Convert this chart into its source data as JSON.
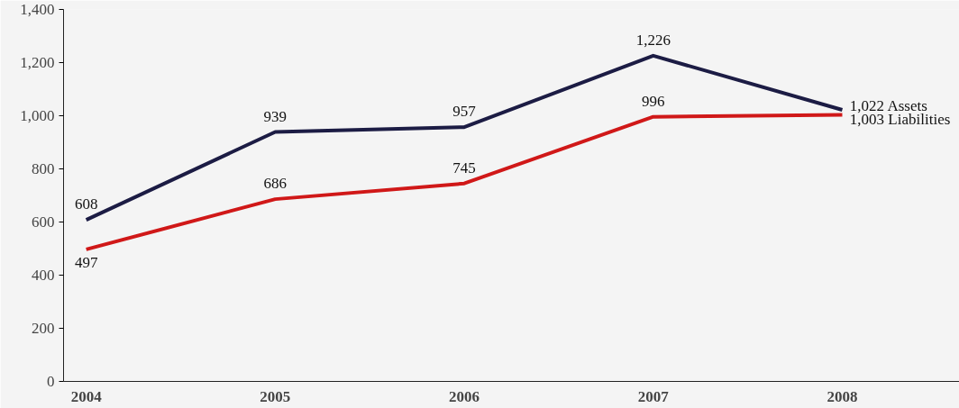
{
  "chart_data": {
    "type": "line",
    "categories": [
      "2004",
      "2005",
      "2006",
      "2007",
      "2008"
    ],
    "series": [
      {
        "name": "Assets",
        "color": "#1c1c44",
        "values": [
          608,
          939,
          957,
          1226,
          1022
        ],
        "value_labels": [
          "608",
          "939",
          "957",
          "1,226",
          "1,022"
        ]
      },
      {
        "name": "Liabilities",
        "color": "#d01818",
        "values": [
          497,
          686,
          745,
          996,
          1003
        ],
        "value_labels": [
          "497",
          "686",
          "745",
          "996",
          "1,003"
        ]
      }
    ],
    "ylim": [
      0,
      1400
    ],
    "yticks": [
      0,
      200,
      400,
      600,
      800,
      {
        "value": 1000,
        "label": "1,000"
      },
      {
        "value": 1200,
        "label": "1,200"
      },
      {
        "value": 1400,
        "label": "1,400"
      }
    ],
    "grid": false,
    "marker": "none",
    "line_style": "solid"
  }
}
